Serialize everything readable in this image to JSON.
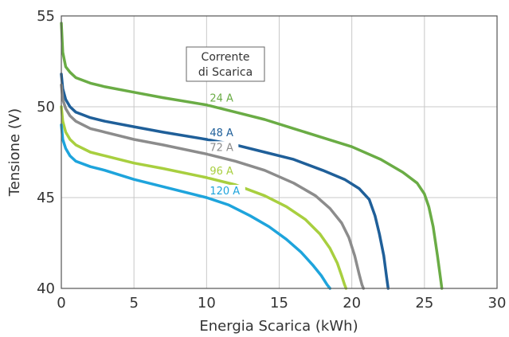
{
  "chart_data": {
    "type": "line",
    "title": "",
    "xlabel": "Energia Scarica (kWh)",
    "ylabel": "Tensione (V)",
    "xlim": [
      0,
      30
    ],
    "ylim": [
      40,
      55
    ],
    "xticks": [
      "0",
      "5",
      "10",
      "15",
      "20",
      "25",
      "30"
    ],
    "yticks": [
      "40",
      "45",
      "50",
      "55"
    ],
    "grid": true,
    "legend_title": "Corrente di Scarica",
    "series": [
      {
        "name": "24 A",
        "color": "#6aac45",
        "x": [
          0,
          0.1,
          0.3,
          0.6,
          1,
          2,
          3,
          5,
          7,
          10,
          12,
          14,
          16,
          18,
          20,
          22,
          23.5,
          24.5,
          25,
          25.3,
          25.6,
          25.9,
          26.1,
          26.2
        ],
        "y": [
          54.6,
          53.0,
          52.2,
          51.9,
          51.6,
          51.3,
          51.1,
          50.8,
          50.5,
          50.1,
          49.7,
          49.3,
          48.8,
          48.3,
          47.8,
          47.1,
          46.4,
          45.8,
          45.2,
          44.5,
          43.4,
          41.8,
          40.6,
          40.0
        ]
      },
      {
        "name": "48 A",
        "color": "#1f5f99",
        "x": [
          0,
          0.1,
          0.3,
          0.6,
          1,
          2,
          3,
          5,
          7,
          10,
          12,
          14,
          16,
          18,
          19.5,
          20.5,
          21.2,
          21.6,
          21.9,
          22.2,
          22.4,
          22.5
        ],
        "y": [
          51.8,
          51.0,
          50.4,
          50.0,
          49.7,
          49.4,
          49.2,
          48.9,
          48.6,
          48.2,
          47.9,
          47.5,
          47.1,
          46.5,
          46.0,
          45.5,
          44.9,
          44.0,
          43.0,
          41.8,
          40.6,
          40.0
        ]
      },
      {
        "name": "72 A",
        "color": "#8c8c8c",
        "x": [
          0,
          0.1,
          0.3,
          0.6,
          1,
          2,
          3,
          5,
          7,
          10,
          12,
          14,
          16,
          17.5,
          18.5,
          19.3,
          19.8,
          20.2,
          20.5,
          20.7,
          20.8
        ],
        "y": [
          51.2,
          50.4,
          49.9,
          49.5,
          49.2,
          48.8,
          48.6,
          48.2,
          47.9,
          47.4,
          47.0,
          46.5,
          45.8,
          45.1,
          44.4,
          43.6,
          42.8,
          41.8,
          40.8,
          40.2,
          40.0
        ]
      },
      {
        "name": "96 A",
        "color": "#a8cf3f",
        "x": [
          0,
          0.1,
          0.3,
          0.6,
          1,
          2,
          3,
          5,
          7,
          10,
          12,
          14,
          15.5,
          16.8,
          17.8,
          18.5,
          19.0,
          19.3,
          19.5,
          19.6
        ],
        "y": [
          50.0,
          49.2,
          48.6,
          48.2,
          47.9,
          47.5,
          47.3,
          46.9,
          46.6,
          46.1,
          45.7,
          45.1,
          44.5,
          43.8,
          43.0,
          42.2,
          41.4,
          40.7,
          40.2,
          40.0
        ]
      },
      {
        "name": "120 A",
        "color": "#1ea4dc",
        "x": [
          0,
          0.1,
          0.3,
          0.6,
          1,
          2,
          3,
          5,
          7,
          10,
          11.5,
          13,
          14.3,
          15.5,
          16.5,
          17.3,
          17.9,
          18.3,
          18.5
        ],
        "y": [
          49.0,
          48.2,
          47.7,
          47.3,
          47.0,
          46.7,
          46.5,
          46.0,
          45.6,
          45.0,
          44.6,
          44.0,
          43.4,
          42.7,
          42.0,
          41.3,
          40.7,
          40.2,
          40.0
        ]
      }
    ]
  }
}
